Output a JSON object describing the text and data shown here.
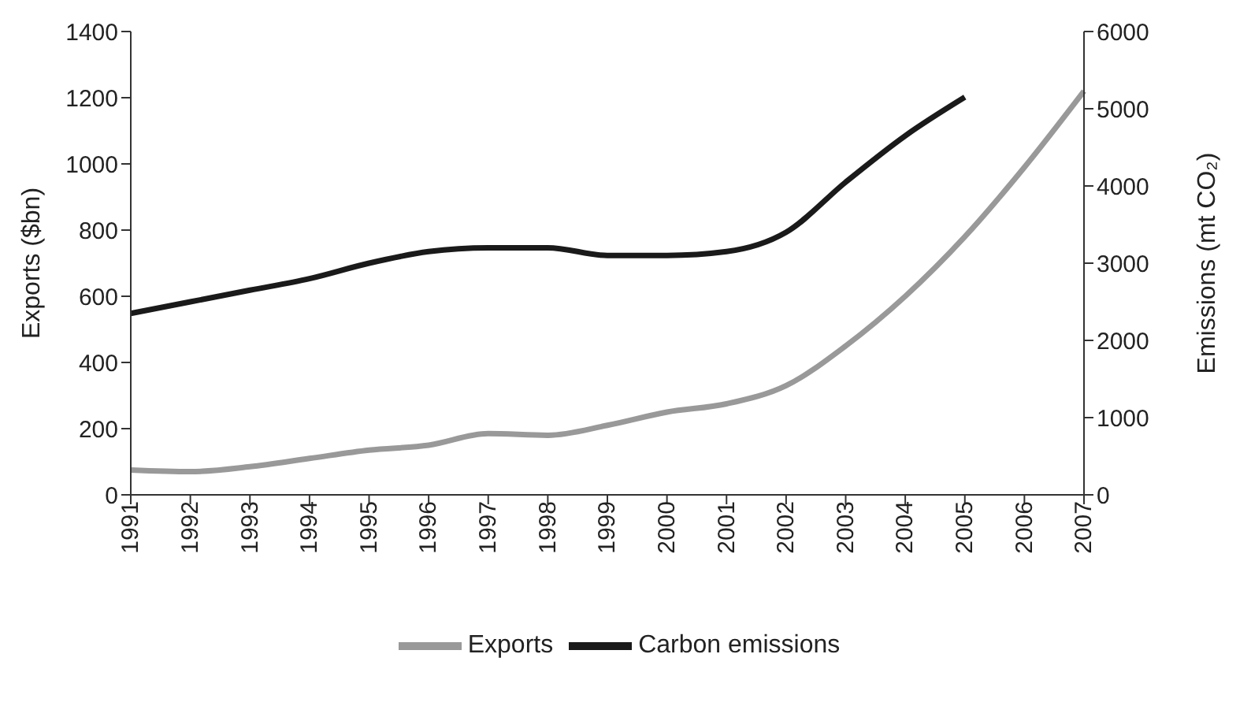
{
  "chart_data": {
    "type": "line",
    "categories": [
      "1991",
      "1992",
      "1993",
      "1994",
      "1995",
      "1996",
      "1997",
      "1998",
      "1999",
      "2000",
      "2001",
      "2002",
      "2003",
      "2004",
      "2005",
      "2006",
      "2007"
    ],
    "ylabel": "Exports ($bn)",
    "y2label": "Emissions (mt CO₂)",
    "ylim": [
      0,
      1400
    ],
    "yticks": [
      0,
      200,
      400,
      600,
      800,
      1000,
      1200,
      1400
    ],
    "y2lim": [
      0,
      6000
    ],
    "y2ticks": [
      0,
      1000,
      2000,
      3000,
      4000,
      5000,
      6000
    ],
    "series": [
      {
        "name": "Exports",
        "color": "#999999",
        "values": [
          75,
          70,
          85,
          110,
          135,
          150,
          185,
          180,
          210,
          250,
          275,
          330,
          450,
          600,
          780,
          990,
          1220
        ]
      },
      {
        "name": "Carbon emissions",
        "color": "#1a1a1a",
        "axis": "y2",
        "values": [
          2350,
          2500,
          2650,
          2800,
          3000,
          3150,
          3200,
          3200,
          3100,
          3100,
          3150,
          3400,
          4050,
          4650,
          5150,
          null,
          null
        ]
      }
    ],
    "grid": false,
    "legend": "bottom",
    "marker": "none",
    "line_style": "solid"
  }
}
